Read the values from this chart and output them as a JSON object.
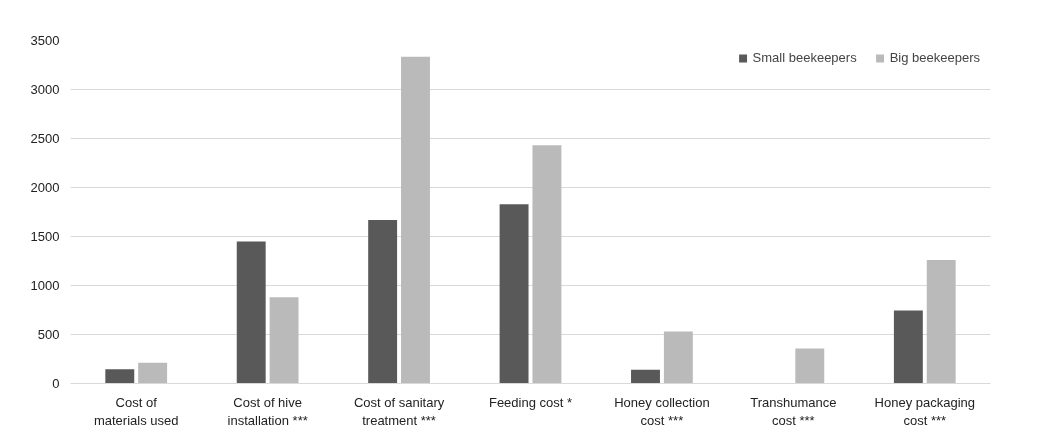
{
  "chart_data": {
    "type": "bar",
    "categories": [
      "Cost of materials used",
      "Cost of hive installation ***",
      "Cost of sanitary treatment ***",
      "Feeding cost *",
      "Honey collection cost ***",
      "Transhumance cost ***",
      "Honey packaging cost ***"
    ],
    "series": [
      {
        "name": "Small beekeepers",
        "color": "#595959",
        "values": [
          145,
          1450,
          1668,
          1828,
          141,
          0,
          745
        ]
      },
      {
        "name": "Big beekeepers",
        "color": "#bababa",
        "values": [
          211,
          879,
          3333,
          2432,
          530,
          356,
          1261
        ]
      }
    ],
    "ylim": [
      0,
      3500
    ],
    "yticks": [
      0,
      500,
      1000,
      1500,
      2000,
      2500,
      3000,
      3500
    ],
    "grid": "y",
    "legend": "top right"
  }
}
